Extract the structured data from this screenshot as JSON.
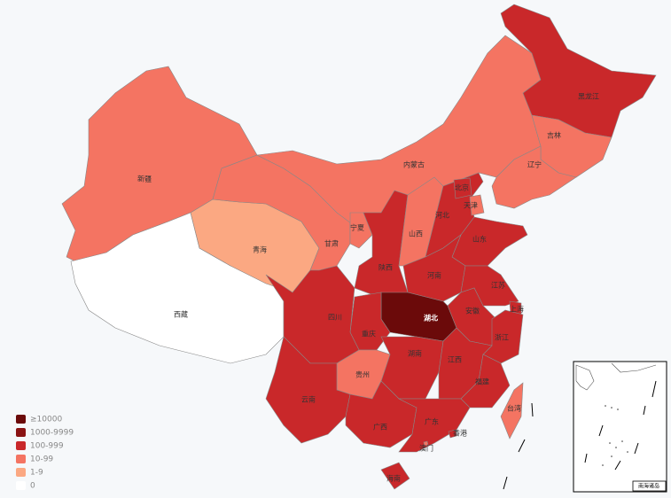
{
  "legend": {
    "items": [
      {
        "label": "≥10000",
        "color": "#6b0a0a"
      },
      {
        "label": "1000-9999",
        "color": "#8b1414"
      },
      {
        "label": "100-999",
        "color": "#c9282a"
      },
      {
        "label": "10-99",
        "color": "#f47462"
      },
      {
        "label": "1-9",
        "color": "#fba882"
      },
      {
        "label": "0",
        "color": "#ffffff"
      }
    ]
  },
  "regions": [
    {
      "name": "新疆",
      "color": "#f47462"
    },
    {
      "name": "西藏",
      "color": "#ffffff"
    },
    {
      "name": "青海",
      "color": "#fba882"
    },
    {
      "name": "甘肃",
      "color": "#f47462"
    },
    {
      "name": "内蒙古",
      "color": "#f47462"
    },
    {
      "name": "黑龙江",
      "color": "#c9282a"
    },
    {
      "name": "吉林",
      "color": "#f47462"
    },
    {
      "name": "辽宁",
      "color": "#f47462"
    },
    {
      "name": "宁夏",
      "color": "#f47462"
    },
    {
      "name": "陕西",
      "color": "#c9282a"
    },
    {
      "name": "山西",
      "color": "#f47462"
    },
    {
      "name": "河北",
      "color": "#c9282a"
    },
    {
      "name": "北京",
      "color": "#c9282a"
    },
    {
      "name": "天津",
      "color": "#f47462"
    },
    {
      "name": "山东",
      "color": "#c9282a"
    },
    {
      "name": "河南",
      "color": "#c9282a"
    },
    {
      "name": "江苏",
      "color": "#c9282a"
    },
    {
      "name": "安徽",
      "color": "#c9282a"
    },
    {
      "name": "上海",
      "color": "#c9282a"
    },
    {
      "name": "浙江",
      "color": "#c9282a"
    },
    {
      "name": "湖北",
      "color": "#6b0a0a"
    },
    {
      "name": "重庆",
      "color": "#c9282a"
    },
    {
      "name": "四川",
      "color": "#c9282a"
    },
    {
      "name": "湖南",
      "color": "#c9282a"
    },
    {
      "name": "江西",
      "color": "#c9282a"
    },
    {
      "name": "福建",
      "color": "#c9282a"
    },
    {
      "name": "贵州",
      "color": "#f47462"
    },
    {
      "name": "云南",
      "color": "#c9282a"
    },
    {
      "name": "广西",
      "color": "#c9282a"
    },
    {
      "name": "广东",
      "color": "#c9282a"
    },
    {
      "name": "海南",
      "color": "#c9282a"
    },
    {
      "name": "台湾",
      "color": "#f47462"
    },
    {
      "name": "香港",
      "color": "#c9282a"
    },
    {
      "name": "澳门",
      "color": "#f47462"
    }
  ],
  "inset_label": "南海诸岛"
}
